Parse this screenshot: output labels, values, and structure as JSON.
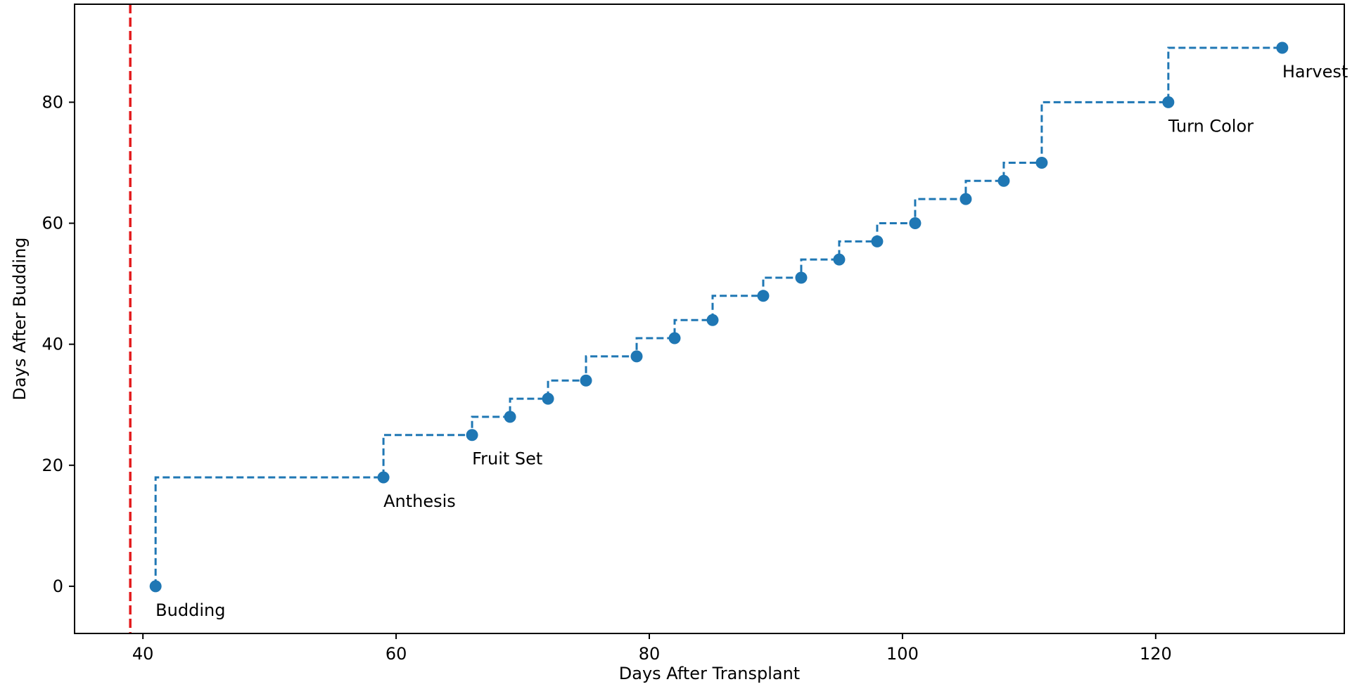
{
  "chart_data": {
    "type": "line",
    "title": "",
    "xlabel": "Days After Transplant",
    "ylabel": "Days After Budding",
    "xlim": [
      34.6,
      134.9
    ],
    "ylim": [
      -7.8,
      96.2
    ],
    "xticks": [
      40,
      60,
      80,
      100,
      120
    ],
    "yticks": [
      0,
      20,
      40,
      60,
      80
    ],
    "grid": false,
    "legend": "none",
    "vline": {
      "x": 39,
      "color": "#e31a1c",
      "style": "dashed"
    },
    "series": [
      {
        "style": "step-pre dashed line with markers",
        "color": "#1f77b4",
        "points": [
          {
            "x": 41,
            "y": 0
          },
          {
            "x": 59,
            "y": 18
          },
          {
            "x": 66,
            "y": 25
          },
          {
            "x": 69,
            "y": 28
          },
          {
            "x": 72,
            "y": 31
          },
          {
            "x": 75,
            "y": 34
          },
          {
            "x": 79,
            "y": 38
          },
          {
            "x": 82,
            "y": 41
          },
          {
            "x": 85,
            "y": 44
          },
          {
            "x": 89,
            "y": 48
          },
          {
            "x": 92,
            "y": 51
          },
          {
            "x": 95,
            "y": 54
          },
          {
            "x": 98,
            "y": 57
          },
          {
            "x": 101,
            "y": 60
          },
          {
            "x": 105,
            "y": 64
          },
          {
            "x": 108,
            "y": 67
          },
          {
            "x": 111,
            "y": 70
          },
          {
            "x": 121,
            "y": 80
          },
          {
            "x": 130,
            "y": 89
          }
        ]
      }
    ],
    "annotations": [
      {
        "text": "Budding",
        "x": 41,
        "y": 0
      },
      {
        "text": "Anthesis",
        "x": 59,
        "y": 18
      },
      {
        "text": "Fruit Set",
        "x": 66,
        "y": 25
      },
      {
        "text": "Turn Color",
        "x": 121,
        "y": 80
      },
      {
        "text": "Harvest",
        "x": 130,
        "y": 89
      }
    ]
  }
}
